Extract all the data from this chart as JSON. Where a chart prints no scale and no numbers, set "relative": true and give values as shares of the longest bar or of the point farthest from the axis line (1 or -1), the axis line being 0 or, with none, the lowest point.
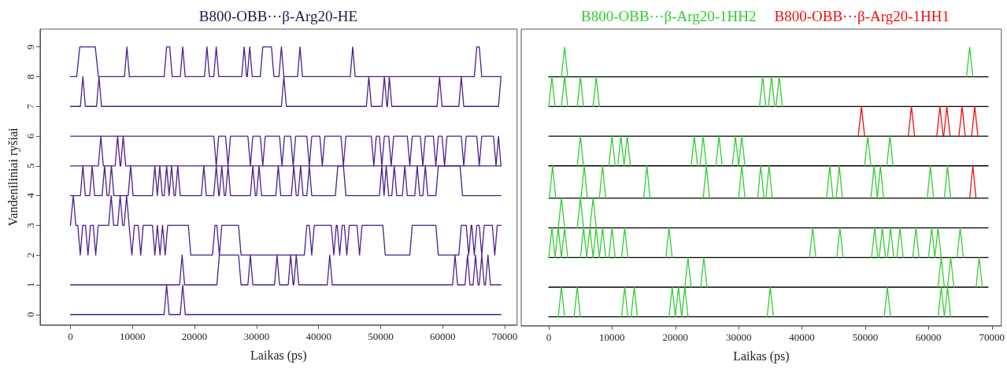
{
  "chart_data": [
    {
      "type": "line",
      "title": "B800-OBB···β-Arg20-HE",
      "xlabel": "Laikas (ps)",
      "ylabel": "Vandeniliniai ryšiai",
      "xlim": [
        -4900,
        72000
      ],
      "ylim": [
        -0.35,
        9.6
      ],
      "xticks": [
        0,
        10000,
        20000,
        30000,
        40000,
        50000,
        60000,
        70000
      ],
      "yticks": [
        0,
        1,
        2,
        3,
        4,
        5,
        6,
        7,
        8,
        9
      ],
      "grid": false,
      "legend": false,
      "series": [
        {
          "color": "#4b1f8e",
          "x": [
            0,
            15100,
            15500,
            15900,
            17700,
            18100,
            18500,
            69400
          ],
          "values": [
            0,
            0,
            1,
            0,
            0,
            1,
            0,
            0
          ]
        },
        {
          "color": "#4b1f8e",
          "x": [
            0,
            17600,
            18000,
            18400,
            23600,
            24000,
            27100,
            27500,
            28600,
            29000,
            29400,
            32900,
            33300,
            33700,
            35100,
            35500,
            35900,
            36000,
            36400,
            36800,
            41400,
            41800,
            42200,
            61600,
            62000,
            62400,
            63600,
            64000,
            64400,
            64900,
            65300,
            65700,
            65900,
            66300,
            66700,
            66900,
            67300,
            67700,
            69400
          ],
          "values": [
            1,
            1,
            2,
            1,
            1,
            2,
            2,
            1,
            1,
            2,
            1,
            1,
            2,
            1,
            1,
            2,
            1,
            1,
            2,
            1,
            1,
            2,
            1,
            1,
            2,
            1,
            1,
            2,
            1,
            1,
            2,
            1,
            1,
            2,
            1,
            1,
            2,
            1,
            1
          ]
        },
        {
          "color": "#4b1f8e",
          "x": [
            0,
            460,
            860,
            1180,
            1580,
            1980,
            2420,
            2820,
            3220,
            3670,
            4070,
            4470,
            6160,
            6560,
            6960,
            7610,
            8010,
            8410,
            8650,
            9050,
            9450,
            9500,
            9900,
            10300,
            10930,
            11330,
            11730,
            13210,
            13610,
            14010,
            14040,
            14440,
            14840,
            14870,
            15270,
            15670,
            19000,
            19400,
            22900,
            23300,
            23600,
            24000,
            24400,
            27100,
            27500,
            37700,
            38100,
            38500,
            38900,
            39300,
            42050,
            42450,
            42850,
            43000,
            43400,
            43800,
            44150,
            44550,
            44950,
            46200,
            46600,
            47000,
            50350,
            50750,
            54700,
            55100,
            58900,
            59300,
            62600,
            63000,
            63800,
            64200,
            64600,
            64700,
            65100,
            65500,
            65900,
            66300,
            66700,
            68000,
            68400,
            68800,
            69400
          ],
          "values": [
            3,
            4,
            3,
            3,
            2,
            3,
            3,
            2,
            3,
            3,
            2,
            3,
            3,
            4,
            3,
            3,
            4,
            3,
            3,
            4,
            3,
            3,
            2,
            3,
            3,
            2,
            3,
            3,
            2,
            3,
            3,
            2,
            3,
            3,
            2,
            3,
            3,
            2,
            2,
            3,
            3,
            2,
            3,
            3,
            2,
            2,
            3,
            3,
            2,
            3,
            3,
            2,
            3,
            3,
            2,
            3,
            3,
            2,
            3,
            3,
            2,
            3,
            3,
            2,
            2,
            3,
            3,
            2,
            2,
            3,
            3,
            2,
            3,
            3,
            2,
            3,
            3,
            2,
            3,
            3,
            2,
            3,
            3
          ]
        },
        {
          "color": "#4b1f8e",
          "x": [
            0,
            1600,
            2000,
            2400,
            3100,
            3500,
            3900,
            5100,
            5500,
            5900,
            6200,
            6600,
            7000,
            9300,
            9700,
            10100,
            13200,
            13600,
            14000,
            14000,
            14400,
            14800,
            15100,
            15500,
            15900,
            15900,
            16300,
            16700,
            16900,
            17300,
            17700,
            21100,
            21500,
            21900,
            23100,
            23500,
            23900,
            24000,
            24400,
            24800,
            25000,
            25400,
            25800,
            29000,
            29400,
            29800,
            30000,
            30400,
            30800,
            33100,
            33500,
            33900,
            35600,
            36000,
            36400,
            36700,
            37100,
            37500,
            38100,
            38500,
            38900,
            42700,
            43100,
            44000,
            44400,
            49800,
            50200,
            50550,
            50550,
            50900,
            51300,
            51800,
            52200,
            52600,
            53500,
            53900,
            54300,
            55500,
            55900,
            56300,
            56800,
            57200,
            57600,
            58900,
            59300,
            62800,
            63200,
            69400
          ],
          "values": [
            4,
            4,
            5,
            4,
            4,
            5,
            4,
            4,
            5,
            4,
            4,
            5,
            4,
            4,
            5,
            4,
            4,
            5,
            4,
            4,
            5,
            4,
            4,
            5,
            4,
            4,
            5,
            4,
            4,
            5,
            4,
            4,
            5,
            4,
            4,
            5,
            4,
            4,
            5,
            4,
            4,
            5,
            4,
            4,
            5,
            4,
            4,
            5,
            4,
            4,
            5,
            4,
            4,
            5,
            4,
            4,
            5,
            4,
            4,
            5,
            4,
            4,
            5,
            5,
            4,
            4,
            5,
            4,
            4,
            5,
            4,
            4,
            5,
            4,
            4,
            5,
            4,
            4,
            5,
            4,
            4,
            5,
            4,
            4,
            5,
            5,
            4,
            4
          ]
        },
        {
          "color": "#4b1f8e",
          "x": [
            0,
            4500,
            4900,
            5300,
            7200,
            7600,
            8000,
            8100,
            8500,
            8900,
            69400
          ],
          "values": [
            5,
            5,
            6,
            5,
            5,
            6,
            5,
            5,
            6,
            5,
            5
          ]
        },
        {
          "color": "#4b1f8e",
          "x": [
            0,
            23100,
            23500,
            23900,
            25000,
            25400,
            25800,
            28600,
            29000,
            29400,
            30600,
            31000,
            31400,
            33700,
            34100,
            34500,
            35500,
            35900,
            36300,
            38100,
            38500,
            38900,
            40200,
            40600,
            41000,
            43600,
            44000,
            44400,
            48500,
            48900,
            49300,
            49800,
            50200,
            50600,
            51300,
            51700,
            52100,
            54300,
            54700,
            55100,
            56400,
            56800,
            57200,
            58500,
            58900,
            59300,
            59900,
            60300,
            60700,
            63000,
            63400,
            63800,
            65500,
            65900,
            66300,
            68200,
            68600,
            69000,
            69400
          ],
          "values": [
            6,
            6,
            5,
            6,
            6,
            5,
            6,
            6,
            5,
            6,
            6,
            5,
            6,
            6,
            5,
            6,
            6,
            5,
            6,
            6,
            5,
            6,
            6,
            5,
            6,
            6,
            5,
            6,
            6,
            5,
            6,
            6,
            5,
            6,
            6,
            5,
            6,
            6,
            5,
            6,
            6,
            5,
            6,
            6,
            5,
            6,
            6,
            5,
            6,
            6,
            5,
            6,
            6,
            5,
            6,
            6,
            5,
            6,
            5
          ]
        },
        {
          "color": "#4b1f8e",
          "x": [
            0,
            1600,
            2000,
            2400,
            4200,
            4600,
            5000,
            34000,
            34400,
            34800,
            47700,
            48100,
            48500,
            50200,
            50600,
            51000,
            51100,
            51400,
            51800,
            59100,
            59500,
            59900,
            62600,
            63000,
            63400,
            69000,
            69400
          ],
          "values": [
            7,
            7,
            8,
            7,
            7,
            8,
            7,
            7,
            8,
            7,
            7,
            8,
            7,
            7,
            8,
            7,
            7,
            8,
            7,
            7,
            8,
            7,
            7,
            8,
            7,
            7,
            8
          ]
        },
        {
          "color": "#4b1f8e",
          "x": [
            0,
            1000,
            1500,
            4000,
            4500,
            8700,
            9100,
            9500,
            15100,
            15500,
            16000,
            16400,
            17700,
            18100,
            18500,
            21600,
            22000,
            22400,
            23100,
            23500,
            23900,
            27600,
            28000,
            28400,
            28500,
            28900,
            29300,
            30600,
            31000,
            32400,
            32800,
            33600,
            34000,
            34400,
            36600,
            37000,
            37400,
            45100,
            45500,
            45900,
            65100,
            65500,
            65900,
            66300,
            69400
          ],
          "values": [
            8,
            8,
            9,
            9,
            8,
            8,
            9,
            8,
            8,
            9,
            9,
            8,
            8,
            9,
            8,
            8,
            9,
            8,
            8,
            9,
            8,
            8,
            9,
            8,
            8,
            9,
            8,
            8,
            9,
            9,
            8,
            8,
            9,
            8,
            8,
            9,
            8,
            8,
            9,
            8,
            8,
            9,
            9,
            8,
            8
          ]
        }
      ]
    },
    {
      "type": "line",
      "xlabel": "Laikas (ps)",
      "xlim": [
        -4350,
        71500
      ],
      "relative": true,
      "xticks": [
        0,
        10000,
        20000,
        30000,
        40000,
        50000,
        60000,
        70000
      ],
      "tick_labels": "x",
      "grid": false,
      "legend": "top",
      "series": [
        {
          "color": "#000000",
          "x": [
            0,
            69400
          ],
          "values": [
            0,
            0
          ]
        },
        {
          "color": "#000000",
          "x": [
            0,
            69400
          ],
          "values": [
            0.11,
            0.11
          ]
        },
        {
          "color": "#000000",
          "x": [
            0,
            69400
          ],
          "values": [
            0.22,
            0.22
          ]
        },
        {
          "color": "#000000",
          "x": [
            0,
            69400
          ],
          "values": [
            0.33,
            0.33
          ]
        },
        {
          "color": "#000000",
          "x": [
            0,
            69400
          ],
          "values": [
            0.44,
            0.44
          ]
        },
        {
          "color": "#000000",
          "x": [
            0,
            69400
          ],
          "values": [
            0.56,
            0.56
          ]
        },
        {
          "color": "#000000",
          "x": [
            0,
            69400
          ],
          "values": [
            0.67,
            0.67
          ]
        },
        {
          "color": "#000000",
          "x": [
            0,
            69400
          ],
          "values": [
            0.78,
            0.78
          ]
        },
        {
          "color": "#000000",
          "x": [
            0,
            69400
          ],
          "values": [
            0.89,
            0.89
          ]
        },
        {
          "name": "B800-OBB···β-Arg20-1HH2",
          "color": "#33cc33",
          "x": [
            1500,
            2000,
            2500
          ],
          "values": [
            0,
            0.11,
            0
          ]
        },
        {
          "color": "#33cc33",
          "x": [
            4000,
            4500,
            5000
          ],
          "values": [
            0,
            0.11,
            0
          ]
        },
        {
          "color": "#33cc33",
          "x": [
            11500,
            12000,
            12500
          ],
          "values": [
            0,
            0.11,
            0
          ]
        },
        {
          "color": "#33cc33",
          "x": [
            13000,
            13500,
            14000
          ],
          "values": [
            0,
            0.11,
            0
          ]
        },
        {
          "color": "#33cc33",
          "x": [
            19000,
            19500,
            20000
          ],
          "values": [
            0,
            0.11,
            0
          ]
        },
        {
          "color": "#33cc33",
          "x": [
            20000,
            20500,
            21000
          ],
          "values": [
            0,
            0.11,
            0
          ]
        },
        {
          "color": "#33cc33",
          "x": [
            21000,
            21500,
            22000
          ],
          "values": [
            0,
            0.11,
            0
          ]
        },
        {
          "color": "#33cc33",
          "x": [
            34500,
            35000,
            35500
          ],
          "values": [
            0,
            0.11,
            0
          ]
        },
        {
          "color": "#33cc33",
          "x": [
            53000,
            53500,
            54000
          ],
          "values": [
            0,
            0.11,
            0
          ]
        },
        {
          "color": "#33cc33",
          "x": [
            61500,
            62000,
            62500
          ],
          "values": [
            0,
            0.11,
            0
          ]
        },
        {
          "color": "#33cc33",
          "x": [
            62500,
            63000,
            63500
          ],
          "values": [
            0,
            0.11,
            0
          ]
        },
        {
          "color": "#33cc33",
          "x": [
            21500,
            22000,
            22500
          ],
          "values": [
            0.11,
            0.22,
            0.11
          ]
        },
        {
          "color": "#33cc33",
          "x": [
            24000,
            24500,
            25000
          ],
          "values": [
            0.11,
            0.22,
            0.11
          ]
        },
        {
          "color": "#33cc33",
          "x": [
            61500,
            62000,
            62500
          ],
          "values": [
            0.11,
            0.22,
            0.11
          ]
        },
        {
          "color": "#33cc33",
          "x": [
            63000,
            63500,
            64000
          ],
          "values": [
            0.11,
            0.22,
            0.11
          ]
        },
        {
          "color": "#33cc33",
          "x": [
            67500,
            68000,
            68500
          ],
          "values": [
            0.11,
            0.22,
            0.11
          ]
        },
        {
          "color": "#33cc33",
          "x": [
            0,
            500,
            1000
          ],
          "values": [
            0.22,
            0.33,
            0.22
          ]
        },
        {
          "color": "#33cc33",
          "x": [
            1000,
            1500,
            2000
          ],
          "values": [
            0.22,
            0.33,
            0.22
          ]
        },
        {
          "color": "#33cc33",
          "x": [
            2000,
            2500,
            3000
          ],
          "values": [
            0.22,
            0.33,
            0.22
          ]
        },
        {
          "color": "#33cc33",
          "x": [
            5000,
            5500,
            6000
          ],
          "values": [
            0.22,
            0.33,
            0.22
          ]
        },
        {
          "color": "#33cc33",
          "x": [
            6000,
            6500,
            7000
          ],
          "values": [
            0.22,
            0.33,
            0.22
          ]
        },
        {
          "color": "#33cc33",
          "x": [
            7000,
            7500,
            8000
          ],
          "values": [
            0.22,
            0.33,
            0.22
          ]
        },
        {
          "color": "#33cc33",
          "x": [
            8000,
            8500,
            9000
          ],
          "values": [
            0.22,
            0.33,
            0.22
          ]
        },
        {
          "color": "#33cc33",
          "x": [
            9500,
            10000,
            10500
          ],
          "values": [
            0.22,
            0.33,
            0.22
          ]
        },
        {
          "color": "#33cc33",
          "x": [
            11500,
            12000,
            12500
          ],
          "values": [
            0.22,
            0.33,
            0.22
          ]
        },
        {
          "color": "#33cc33",
          "x": [
            18500,
            19000,
            19500
          ],
          "values": [
            0.22,
            0.33,
            0.22
          ]
        },
        {
          "color": "#33cc33",
          "x": [
            41200,
            41700,
            42200
          ],
          "values": [
            0.22,
            0.33,
            0.22
          ]
        },
        {
          "color": "#33cc33",
          "x": [
            45500,
            46000,
            46500
          ],
          "values": [
            0.22,
            0.33,
            0.22
          ]
        },
        {
          "color": "#33cc33",
          "x": [
            51000,
            51500,
            52000
          ],
          "values": [
            0.22,
            0.33,
            0.22
          ]
        },
        {
          "color": "#33cc33",
          "x": [
            52200,
            52700,
            53200
          ],
          "values": [
            0.22,
            0.33,
            0.22
          ]
        },
        {
          "color": "#33cc33",
          "x": [
            53500,
            54000,
            54500
          ],
          "values": [
            0.22,
            0.33,
            0.22
          ]
        },
        {
          "color": "#33cc33",
          "x": [
            55000,
            55500,
            56000
          ],
          "values": [
            0.22,
            0.33,
            0.22
          ]
        },
        {
          "color": "#33cc33",
          "x": [
            57500,
            58000,
            58500
          ],
          "values": [
            0.22,
            0.33,
            0.22
          ]
        },
        {
          "color": "#33cc33",
          "x": [
            60000,
            60500,
            61000
          ],
          "values": [
            0.22,
            0.33,
            0.22
          ]
        },
        {
          "color": "#33cc33",
          "x": [
            61000,
            61500,
            62000
          ],
          "values": [
            0.22,
            0.33,
            0.22
          ]
        },
        {
          "color": "#33cc33",
          "x": [
            64500,
            65000,
            65500
          ],
          "values": [
            0.22,
            0.33,
            0.22
          ]
        },
        {
          "color": "#33cc33",
          "x": [
            1500,
            2000,
            2500
          ],
          "values": [
            0.33,
            0.44,
            0.33
          ]
        },
        {
          "color": "#33cc33",
          "x": [
            4500,
            5000,
            5500
          ],
          "values": [
            0.33,
            0.44,
            0.33
          ]
        },
        {
          "color": "#33cc33",
          "x": [
            6500,
            7000,
            7500
          ],
          "values": [
            0.33,
            0.44,
            0.33
          ]
        },
        {
          "color": "#33cc33",
          "x": [
            100,
            600,
            1100
          ],
          "values": [
            0.44,
            0.56,
            0.44
          ]
        },
        {
          "color": "#33cc33",
          "x": [
            5100,
            5600,
            6100
          ],
          "values": [
            0.44,
            0.56,
            0.44
          ]
        },
        {
          "color": "#33cc33",
          "x": [
            8000,
            8500,
            9000
          ],
          "values": [
            0.44,
            0.56,
            0.44
          ]
        },
        {
          "color": "#33cc33",
          "x": [
            15000,
            15500,
            16000
          ],
          "values": [
            0.44,
            0.56,
            0.44
          ]
        },
        {
          "color": "#33cc33",
          "x": [
            24400,
            24900,
            25400
          ],
          "values": [
            0.44,
            0.56,
            0.44
          ]
        },
        {
          "color": "#33cc33",
          "x": [
            30000,
            30500,
            31000
          ],
          "values": [
            0.44,
            0.56,
            0.44
          ]
        },
        {
          "color": "#33cc33",
          "x": [
            33000,
            33500,
            34000
          ],
          "values": [
            0.44,
            0.56,
            0.44
          ]
        },
        {
          "color": "#33cc33",
          "x": [
            34300,
            34800,
            35300
          ],
          "values": [
            0.44,
            0.56,
            0.44
          ]
        },
        {
          "color": "#33cc33",
          "x": [
            43900,
            44400,
            44900
          ],
          "values": [
            0.44,
            0.56,
            0.44
          ]
        },
        {
          "color": "#33cc33",
          "x": [
            45400,
            45900,
            46400
          ],
          "values": [
            0.44,
            0.56,
            0.44
          ]
        },
        {
          "color": "#33cc33",
          "x": [
            50900,
            51400,
            51900
          ],
          "values": [
            0.44,
            0.56,
            0.44
          ]
        },
        {
          "color": "#33cc33",
          "x": [
            51900,
            52400,
            52900
          ],
          "values": [
            0.44,
            0.56,
            0.44
          ]
        },
        {
          "color": "#33cc33",
          "x": [
            59800,
            60300,
            60800
          ],
          "values": [
            0.44,
            0.56,
            0.44
          ]
        },
        {
          "color": "#33cc33",
          "x": [
            62500,
            63000,
            63500
          ],
          "values": [
            0.44,
            0.56,
            0.44
          ]
        },
        {
          "color": "#33cc33",
          "x": [
            4500,
            5000,
            5500
          ],
          "values": [
            0.56,
            0.67,
            0.56
          ]
        },
        {
          "color": "#33cc33",
          "x": [
            9500,
            10000,
            10500
          ],
          "values": [
            0.56,
            0.67,
            0.56
          ]
        },
        {
          "color": "#33cc33",
          "x": [
            10900,
            11400,
            11900
          ],
          "values": [
            0.56,
            0.67,
            0.56
          ]
        },
        {
          "color": "#33cc33",
          "x": [
            11900,
            12400,
            12900
          ],
          "values": [
            0.56,
            0.67,
            0.56
          ]
        },
        {
          "color": "#33cc33",
          "x": [
            22500,
            23000,
            23500
          ],
          "values": [
            0.56,
            0.67,
            0.56
          ]
        },
        {
          "color": "#33cc33",
          "x": [
            23900,
            24400,
            24900
          ],
          "values": [
            0.56,
            0.67,
            0.56
          ]
        },
        {
          "color": "#33cc33",
          "x": [
            26400,
            26900,
            27400
          ],
          "values": [
            0.56,
            0.67,
            0.56
          ]
        },
        {
          "color": "#33cc33",
          "x": [
            29000,
            29500,
            30000
          ],
          "values": [
            0.56,
            0.67,
            0.56
          ]
        },
        {
          "color": "#33cc33",
          "x": [
            30000,
            30500,
            31000
          ],
          "values": [
            0.56,
            0.67,
            0.56
          ]
        },
        {
          "color": "#33cc33",
          "x": [
            49900,
            50400,
            50900
          ],
          "values": [
            0.56,
            0.67,
            0.56
          ]
        },
        {
          "color": "#33cc33",
          "x": [
            53400,
            53900,
            54400
          ],
          "values": [
            0.56,
            0.67,
            0.56
          ]
        },
        {
          "color": "#33cc33",
          "x": [
            0,
            500,
            1000
          ],
          "values": [
            0.78,
            0.89,
            0.78
          ]
        },
        {
          "color": "#33cc33",
          "x": [
            2000,
            2500,
            3000
          ],
          "values": [
            0.78,
            0.89,
            0.78
          ]
        },
        {
          "color": "#33cc33",
          "x": [
            4500,
            5000,
            5500
          ],
          "values": [
            0.78,
            0.89,
            0.78
          ]
        },
        {
          "color": "#33cc33",
          "x": [
            7000,
            7500,
            8000
          ],
          "values": [
            0.78,
            0.89,
            0.78
          ]
        },
        {
          "color": "#33cc33",
          "x": [
            33300,
            33800,
            34300
          ],
          "values": [
            0.78,
            0.89,
            0.78
          ]
        },
        {
          "color": "#33cc33",
          "x": [
            34700,
            35200,
            35700
          ],
          "values": [
            0.78,
            0.89,
            0.78
          ]
        },
        {
          "color": "#33cc33",
          "x": [
            35900,
            36400,
            36900
          ],
          "values": [
            0.78,
            0.89,
            0.78
          ]
        },
        {
          "color": "#33cc33",
          "x": [
            2000,
            2500,
            3000
          ],
          "values": [
            0.89,
            1,
            0.89
          ]
        },
        {
          "color": "#33cc33",
          "x": [
            66000,
            66500,
            67000
          ],
          "values": [
            0.89,
            1,
            0.89
          ]
        },
        {
          "name": "B800-OBB···β-Arg20-1HH1",
          "color": "#ee1111",
          "x": [
            48900,
            49400,
            49900
          ],
          "values": [
            0.67,
            0.78,
            0.67
          ]
        },
        {
          "color": "#ee1111",
          "x": [
            56800,
            57300,
            57800
          ],
          "values": [
            0.67,
            0.78,
            0.67
          ]
        },
        {
          "color": "#ee1111",
          "x": [
            61300,
            61800,
            62300
          ],
          "values": [
            0.67,
            0.78,
            0.67
          ]
        },
        {
          "color": "#ee1111",
          "x": [
            62400,
            62900,
            63400
          ],
          "values": [
            0.67,
            0.78,
            0.67
          ]
        },
        {
          "color": "#ee1111",
          "x": [
            64800,
            65300,
            65800
          ],
          "values": [
            0.67,
            0.78,
            0.67
          ]
        },
        {
          "color": "#ee1111",
          "x": [
            66800,
            67300,
            67800
          ],
          "values": [
            0.67,
            0.78,
            0.67
          ]
        },
        {
          "color": "#ee1111",
          "x": [
            66500,
            67000,
            67500
          ],
          "values": [
            0.44,
            0.56,
            0.44
          ]
        }
      ]
    }
  ]
}
